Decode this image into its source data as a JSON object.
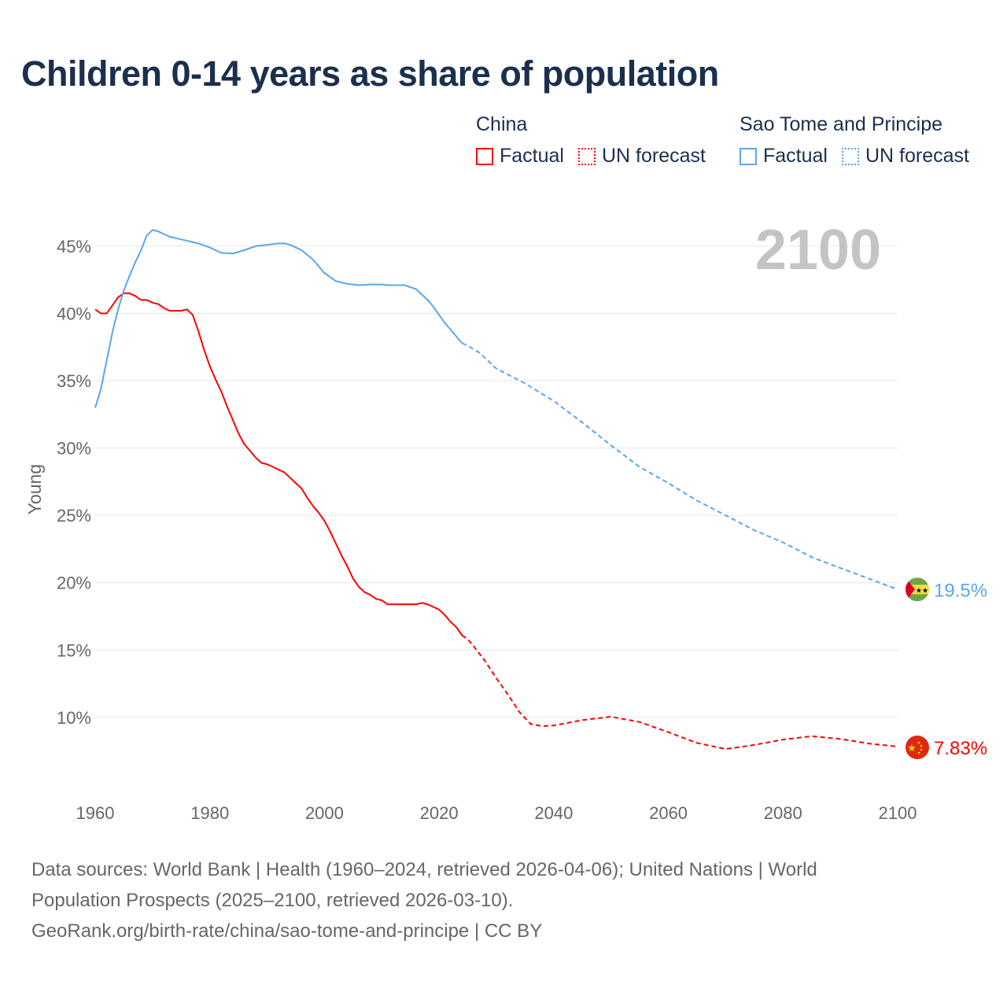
{
  "chart_data": {
    "type": "line",
    "title": "Children 0-14 years as share of population",
    "ylabel": "Young",
    "xlabel": "",
    "xlim": [
      1960,
      2100
    ],
    "ylim": [
      5,
      47
    ],
    "x_ticks": [
      "1960",
      "1980",
      "2000",
      "2020",
      "2040",
      "2060",
      "2080",
      "2100"
    ],
    "x_tick_values": [
      1960,
      1980,
      2000,
      2020,
      2040,
      2060,
      2080,
      2100
    ],
    "y_ticks": [
      "10%",
      "15%",
      "20%",
      "25%",
      "30%",
      "35%",
      "40%",
      "45%"
    ],
    "y_tick_values": [
      10,
      15,
      20,
      25,
      30,
      35,
      40,
      45
    ],
    "grid": true,
    "year_label": "2100",
    "legend": {
      "placement": "top-right",
      "groups": [
        {
          "name": "China",
          "factual": "Factual",
          "forecast": "UN forecast",
          "color": "#ff0000"
        },
        {
          "name": "Sao Tome and Principe",
          "factual": "Factual",
          "forecast": "UN forecast",
          "color": "#5aa6ea"
        }
      ]
    },
    "series": [
      {
        "name": "China",
        "color": "#ff0000",
        "end_label": "7.83%",
        "flag": "china-flag",
        "factual": [
          [
            1960,
            40.3
          ],
          [
            1961,
            40.0
          ],
          [
            1962,
            40.0
          ],
          [
            1963,
            40.6
          ],
          [
            1964,
            41.2
          ],
          [
            1965,
            41.5
          ],
          [
            1966,
            41.5
          ],
          [
            1967,
            41.3
          ],
          [
            1968,
            41.0
          ],
          [
            1969,
            41.0
          ],
          [
            1970,
            40.8
          ],
          [
            1971,
            40.7
          ],
          [
            1972,
            40.4
          ],
          [
            1973,
            40.2
          ],
          [
            1974,
            40.2
          ],
          [
            1975,
            40.2
          ],
          [
            1976,
            40.3
          ],
          [
            1977,
            39.9
          ],
          [
            1978,
            38.7
          ],
          [
            1979,
            37.3
          ],
          [
            1980,
            36.1
          ],
          [
            1981,
            35.1
          ],
          [
            1982,
            34.2
          ],
          [
            1983,
            33.1
          ],
          [
            1984,
            32.1
          ],
          [
            1985,
            31.1
          ],
          [
            1986,
            30.3
          ],
          [
            1987,
            29.8
          ],
          [
            1988,
            29.3
          ],
          [
            1989,
            28.9
          ],
          [
            1990,
            28.8
          ],
          [
            1991,
            28.6
          ],
          [
            1992,
            28.4
          ],
          [
            1993,
            28.2
          ],
          [
            1994,
            27.8
          ],
          [
            1995,
            27.4
          ],
          [
            1996,
            27.0
          ],
          [
            1997,
            26.3
          ],
          [
            1998,
            25.7
          ],
          [
            1999,
            25.2
          ],
          [
            2000,
            24.6
          ],
          [
            2001,
            23.8
          ],
          [
            2002,
            22.9
          ],
          [
            2003,
            22.0
          ],
          [
            2004,
            21.2
          ],
          [
            2005,
            20.3
          ],
          [
            2006,
            19.7
          ],
          [
            2007,
            19.3
          ],
          [
            2008,
            19.1
          ],
          [
            2009,
            18.8
          ],
          [
            2010,
            18.7
          ],
          [
            2011,
            18.4
          ],
          [
            2012,
            18.4
          ],
          [
            2013,
            18.4
          ],
          [
            2014,
            18.4
          ],
          [
            2015,
            18.4
          ],
          [
            2016,
            18.4
          ],
          [
            2017,
            18.5
          ],
          [
            2018,
            18.4
          ],
          [
            2019,
            18.2
          ],
          [
            2020,
            18.0
          ],
          [
            2021,
            17.6
          ],
          [
            2022,
            17.1
          ],
          [
            2023,
            16.7
          ],
          [
            2024,
            16.1
          ]
        ],
        "forecast": [
          [
            2024,
            16.1
          ],
          [
            2025,
            15.8
          ],
          [
            2026,
            15.3
          ],
          [
            2028,
            14.2
          ],
          [
            2030,
            12.9
          ],
          [
            2032,
            11.7
          ],
          [
            2034,
            10.4
          ],
          [
            2036,
            9.5
          ],
          [
            2038,
            9.35
          ],
          [
            2040,
            9.4
          ],
          [
            2045,
            9.8
          ],
          [
            2050,
            10.05
          ],
          [
            2055,
            9.65
          ],
          [
            2060,
            8.9
          ],
          [
            2065,
            8.1
          ],
          [
            2070,
            7.65
          ],
          [
            2075,
            7.95
          ],
          [
            2080,
            8.35
          ],
          [
            2085,
            8.6
          ],
          [
            2090,
            8.4
          ],
          [
            2095,
            8.05
          ],
          [
            2100,
            7.83
          ]
        ]
      },
      {
        "name": "Sao Tome and Principe",
        "color": "#5aa6ea",
        "end_label": "19.5%",
        "flag": "sao-tome-flag",
        "factual": [
          [
            1960,
            33.0
          ],
          [
            1961,
            34.4
          ],
          [
            1962,
            36.5
          ],
          [
            1963,
            38.6
          ],
          [
            1964,
            40.3
          ],
          [
            1965,
            41.7
          ],
          [
            1966,
            42.8
          ],
          [
            1967,
            43.8
          ],
          [
            1968,
            44.7
          ],
          [
            1969,
            45.8
          ],
          [
            1970,
            46.2
          ],
          [
            1971,
            46.1
          ],
          [
            1972,
            45.9
          ],
          [
            1973,
            45.7
          ],
          [
            1975,
            45.5
          ],
          [
            1978,
            45.2
          ],
          [
            1980,
            44.9
          ],
          [
            1982,
            44.5
          ],
          [
            1984,
            44.45
          ],
          [
            1986,
            44.7
          ],
          [
            1988,
            45.0
          ],
          [
            1990,
            45.1
          ],
          [
            1992,
            45.2
          ],
          [
            1993,
            45.2
          ],
          [
            1994,
            45.1
          ],
          [
            1996,
            44.7
          ],
          [
            1998,
            44.0
          ],
          [
            1999,
            43.5
          ],
          [
            2000,
            43.0
          ],
          [
            2001,
            42.7
          ],
          [
            2002,
            42.4
          ],
          [
            2004,
            42.2
          ],
          [
            2006,
            42.1
          ],
          [
            2008,
            42.15
          ],
          [
            2010,
            42.15
          ],
          [
            2011,
            42.1
          ],
          [
            2014,
            42.1
          ],
          [
            2016,
            41.8
          ],
          [
            2017,
            41.4
          ],
          [
            2018,
            41.0
          ],
          [
            2019,
            40.5
          ],
          [
            2020,
            39.9
          ],
          [
            2021,
            39.3
          ],
          [
            2022,
            38.8
          ],
          [
            2023,
            38.3
          ],
          [
            2024,
            37.8
          ]
        ],
        "forecast": [
          [
            2024,
            37.8
          ],
          [
            2025,
            37.6
          ],
          [
            2027,
            37.1
          ],
          [
            2030,
            35.9
          ],
          [
            2035,
            34.8
          ],
          [
            2040,
            33.5
          ],
          [
            2045,
            31.9
          ],
          [
            2050,
            30.2
          ],
          [
            2055,
            28.6
          ],
          [
            2060,
            27.4
          ],
          [
            2065,
            26.1
          ],
          [
            2070,
            25.0
          ],
          [
            2075,
            23.9
          ],
          [
            2080,
            23.0
          ],
          [
            2085,
            21.9
          ],
          [
            2090,
            21.1
          ],
          [
            2095,
            20.3
          ],
          [
            2100,
            19.5
          ]
        ]
      }
    ]
  },
  "footer": {
    "line1": "Data sources: World Bank | Health (1960–2024, retrieved 2026-04-06); United Nations | World",
    "line2": "Population Prospects (2025–2100, retrieved 2026-03-10).",
    "line3": "GeoRank.org/birth-rate/china/sao-tome-and-principe | CC BY"
  }
}
